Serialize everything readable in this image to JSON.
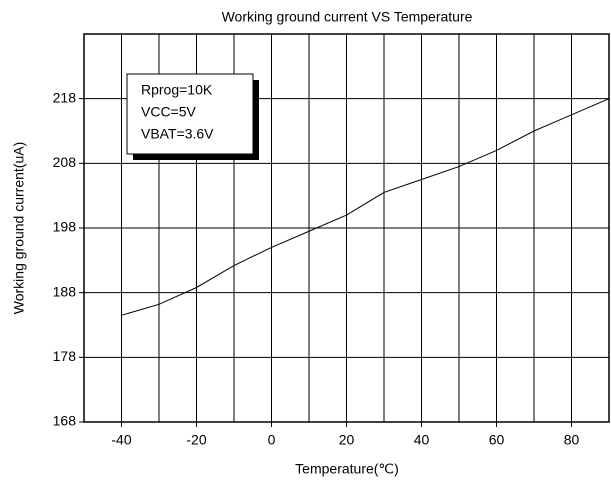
{
  "chart_data": {
    "type": "line",
    "title": "Working ground current VS Temperature",
    "xlabel": "Temperature(℃)",
    "ylabel": "Working ground current(uA)",
    "annotation": [
      "Rprog=10K",
      "VCC=5V",
      "VBAT=3.6V"
    ],
    "x": [
      -40,
      -30,
      -20,
      -10,
      0,
      10,
      20,
      30,
      40,
      50,
      60,
      70,
      80,
      90
    ],
    "series": [
      {
        "name": null,
        "color": "#000000",
        "values": [
          184.5,
          186.2,
          188.8,
          192.2,
          195,
          197.5,
          200,
          203.5,
          205.5,
          207.5,
          210,
          213,
          215.5,
          218
        ]
      }
    ],
    "xlim": [
      -50,
      90
    ],
    "xticks": [
      -40,
      -20,
      0,
      20,
      40,
      60,
      80
    ],
    "xgrid": [
      -40,
      -30,
      -20,
      -10,
      0,
      10,
      20,
      30,
      40,
      50,
      60,
      70,
      80
    ],
    "ylim": [
      168,
      228
    ],
    "yticks": [
      168,
      178,
      188,
      198,
      208,
      218
    ],
    "grid": true
  }
}
